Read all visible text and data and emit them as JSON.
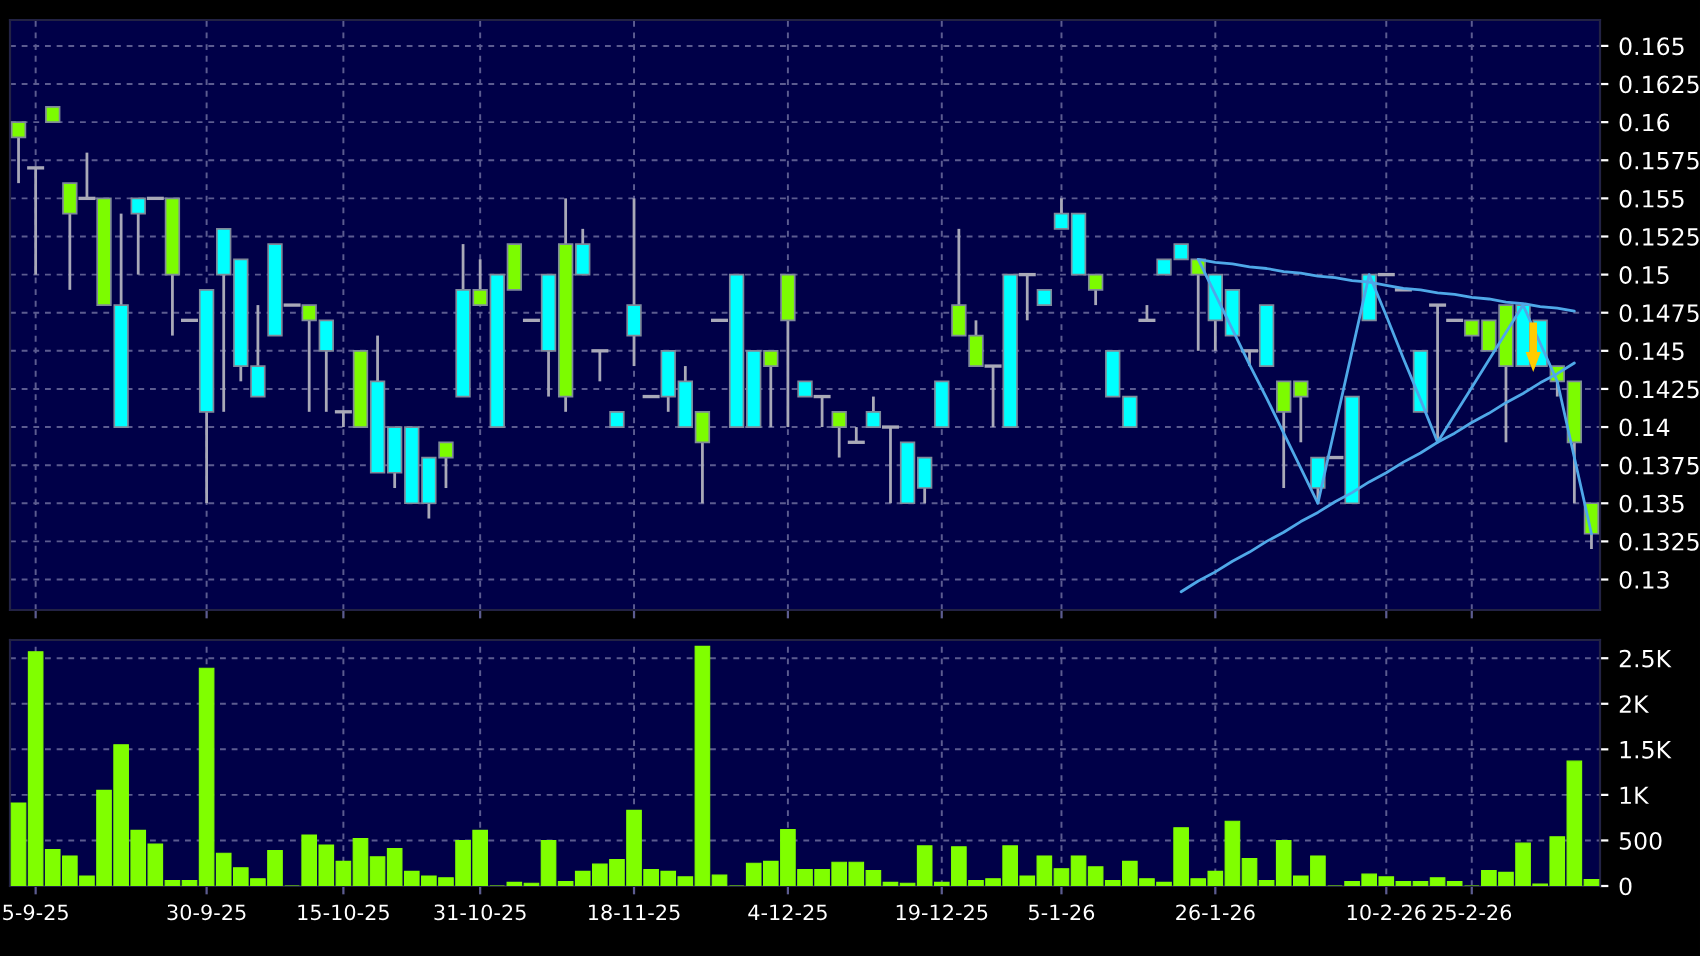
{
  "chart_data": [
    {
      "type": "candlestick",
      "categories": [
        null,
        null,
        null,
        null,
        null,
        null,
        null,
        null,
        null,
        null,
        null,
        null,
        null,
        null,
        null,
        null,
        null,
        null,
        null,
        null,
        null,
        null,
        null,
        null,
        null,
        null,
        null,
        null,
        null,
        null,
        null,
        null,
        null,
        null,
        null,
        null,
        null,
        null,
        null,
        null,
        null,
        null,
        null,
        null,
        null,
        null,
        null,
        null,
        null,
        null,
        null,
        null,
        null,
        null,
        null,
        null,
        null,
        null,
        null,
        null,
        null,
        null,
        null,
        null,
        null,
        null,
        null,
        null,
        null,
        null,
        null,
        null,
        null,
        null,
        null,
        null,
        null,
        null,
        null,
        null,
        null,
        null,
        null,
        null,
        null,
        null,
        null,
        null,
        null,
        null,
        null,
        null,
        null
      ],
      "ohlc": [
        [
          0.159,
          0.16,
          0.156,
          0.16
        ],
        [
          0.157,
          0.157,
          0.15,
          0.157
        ],
        [
          0.16,
          0.161,
          0.16,
          0.161
        ],
        [
          0.154,
          0.156,
          0.149,
          0.156
        ],
        [
          0.155,
          0.158,
          0.155,
          0.155
        ],
        [
          0.148,
          0.155,
          0.148,
          0.155
        ],
        [
          0.148,
          0.154,
          0.14,
          0.14
        ],
        [
          0.155,
          0.155,
          0.15,
          0.154
        ],
        [
          0.155,
          0.155,
          0.155,
          0.155
        ],
        [
          0.15,
          0.155,
          0.146,
          0.155
        ],
        [
          0.147,
          0.147,
          0.147,
          0.147
        ],
        [
          0.149,
          0.149,
          0.135,
          0.141
        ],
        [
          0.153,
          0.153,
          0.141,
          0.15
        ],
        [
          0.151,
          0.151,
          0.143,
          0.144
        ],
        [
          0.144,
          0.148,
          0.142,
          0.142
        ],
        [
          0.152,
          0.152,
          0.146,
          0.146
        ],
        [
          0.148,
          0.148,
          0.148,
          0.148
        ],
        [
          0.147,
          0.148,
          0.141,
          0.148
        ],
        [
          0.147,
          0.147,
          0.141,
          0.145
        ],
        [
          0.141,
          0.141,
          0.14,
          0.141
        ],
        [
          0.14,
          0.145,
          0.14,
          0.145
        ],
        [
          0.143,
          0.146,
          0.137,
          0.137
        ],
        [
          0.14,
          0.14,
          0.136,
          0.137
        ],
        [
          0.14,
          0.14,
          0.135,
          0.135
        ],
        [
          0.138,
          0.138,
          0.134,
          0.135
        ],
        [
          0.138,
          0.139,
          0.136,
          0.139
        ],
        [
          0.149,
          0.152,
          0.142,
          0.142
        ],
        [
          0.148,
          0.151,
          0.148,
          0.149
        ],
        [
          0.15,
          0.15,
          0.14,
          0.14
        ],
        [
          0.149,
          0.152,
          0.149,
          0.152
        ],
        [
          0.147,
          0.147,
          0.147,
          0.147
        ],
        [
          0.15,
          0.15,
          0.142,
          0.145
        ],
        [
          0.142,
          0.155,
          0.141,
          0.152
        ],
        [
          0.152,
          0.153,
          0.15,
          0.15
        ],
        [
          0.145,
          0.145,
          0.143,
          0.145
        ],
        [
          0.141,
          0.141,
          0.14,
          0.14
        ],
        [
          0.148,
          0.155,
          0.144,
          0.146
        ],
        [
          0.142,
          0.142,
          0.142,
          0.142
        ],
        [
          0.145,
          0.145,
          0.141,
          0.142
        ],
        [
          0.143,
          0.144,
          0.14,
          0.14
        ],
        [
          0.139,
          0.141,
          0.135,
          0.141
        ],
        [
          0.147,
          0.147,
          0.147,
          0.147
        ],
        [
          0.15,
          0.15,
          0.14,
          0.14
        ],
        [
          0.145,
          0.145,
          0.14,
          0.14
        ],
        [
          0.144,
          0.145,
          0.14,
          0.145
        ],
        [
          0.147,
          0.15,
          0.14,
          0.15
        ],
        [
          0.143,
          0.143,
          0.142,
          0.142
        ],
        [
          0.142,
          0.142,
          0.14,
          0.142
        ],
        [
          0.14,
          0.141,
          0.138,
          0.141
        ],
        [
          0.139,
          0.14,
          0.139,
          0.139
        ],
        [
          0.141,
          0.142,
          0.14,
          0.14
        ],
        [
          0.14,
          0.14,
          0.135,
          0.14
        ],
        [
          0.139,
          0.139,
          0.135,
          0.135
        ],
        [
          0.138,
          0.138,
          0.135,
          0.136
        ],
        [
          0.143,
          0.143,
          0.14,
          0.14
        ],
        [
          0.146,
          0.153,
          0.146,
          0.148
        ],
        [
          0.144,
          0.147,
          0.144,
          0.146
        ],
        [
          0.144,
          0.144,
          0.14,
          0.144
        ],
        [
          0.15,
          0.15,
          0.14,
          0.14
        ],
        [
          0.15,
          0.15,
          0.147,
          0.15
        ],
        [
          0.149,
          0.149,
          0.148,
          0.148
        ],
        [
          0.154,
          0.155,
          0.153,
          0.153
        ],
        [
          0.154,
          0.154,
          0.15,
          0.15
        ],
        [
          0.149,
          0.15,
          0.148,
          0.15
        ],
        [
          0.145,
          0.145,
          0.142,
          0.142
        ],
        [
          0.142,
          0.142,
          0.14,
          0.14
        ],
        [
          0.147,
          0.148,
          0.147,
          0.147
        ],
        [
          0.151,
          0.151,
          0.15,
          0.15
        ],
        [
          0.152,
          0.152,
          0.151,
          0.151
        ],
        [
          0.15,
          0.151,
          0.145,
          0.151
        ],
        [
          0.15,
          0.15,
          0.145,
          0.147
        ],
        [
          0.149,
          0.149,
          0.146,
          0.146
        ],
        [
          0.145,
          0.145,
          0.144,
          0.145
        ],
        [
          0.148,
          0.148,
          0.144,
          0.144
        ],
        [
          0.141,
          0.143,
          0.136,
          0.143
        ],
        [
          0.142,
          0.143,
          0.139,
          0.143
        ],
        [
          0.138,
          0.138,
          0.135,
          0.136
        ],
        [
          0.138,
          0.138,
          0.138,
          0.138
        ],
        [
          0.142,
          0.142,
          0.135,
          0.135
        ],
        [
          0.15,
          0.15,
          0.147,
          0.147
        ],
        [
          0.15,
          0.15,
          0.15,
          0.15
        ],
        [
          0.149,
          0.149,
          0.149,
          0.149
        ],
        [
          0.145,
          0.145,
          0.141,
          0.141
        ],
        [
          0.148,
          0.148,
          0.139,
          0.148
        ],
        [
          0.147,
          0.147,
          0.147,
          0.147
        ],
        [
          0.146,
          0.147,
          0.146,
          0.147
        ],
        [
          0.145,
          0.147,
          0.145,
          0.147
        ],
        [
          0.144,
          0.148,
          0.139,
          0.148
        ],
        [
          0.148,
          0.148,
          0.144,
          0.144
        ],
        [
          0.147,
          0.147,
          0.144,
          0.144
        ],
        [
          0.143,
          0.144,
          0.142,
          0.144
        ],
        [
          0.139,
          0.143,
          0.135,
          0.143
        ],
        [
          0.133,
          0.135,
          0.132,
          0.135
        ]
      ],
      "colors": [
        "#7cfc00",
        "#a9a9b8",
        "#7cfc00",
        "#7cfc00",
        "#a9a9b8",
        "#7cfc00",
        "#00ffff",
        "#00ffff",
        "#a9a9b8",
        "#7cfc00",
        "#a9a9b8",
        "#00ffff",
        "#00ffff",
        "#00ffff",
        "#00ffff",
        "#00ffff",
        "#a9a9b8",
        "#7cfc00",
        "#00ffff",
        "#a9a9b8",
        "#7cfc00",
        "#00ffff",
        "#00ffff",
        "#00ffff",
        "#00ffff",
        "#7cfc00",
        "#00ffff",
        "#7cfc00",
        "#00ffff",
        "#7cfc00",
        "#a9a9b8",
        "#00ffff",
        "#7cfc00",
        "#00ffff",
        "#a9a9b8",
        "#00ffff",
        "#00ffff",
        "#a9a9b8",
        "#00ffff",
        "#00ffff",
        "#7cfc00",
        "#a9a9b8",
        "#00ffff",
        "#00ffff",
        "#7cfc00",
        "#7cfc00",
        "#00ffff",
        "#a9a9b8",
        "#7cfc00",
        "#a9a9b8",
        "#00ffff",
        "#a9a9b8",
        "#00ffff",
        "#00ffff",
        "#00ffff",
        "#7cfc00",
        "#7cfc00",
        "#a9a9b8",
        "#00ffff",
        "#a9a9b8",
        "#00ffff",
        "#00ffff",
        "#00ffff",
        "#7cfc00",
        "#00ffff",
        "#00ffff",
        "#a9a9b8",
        "#00ffff",
        "#00ffff",
        "#7cfc00",
        "#00ffff",
        "#00ffff",
        "#a9a9b8",
        "#00ffff",
        "#7cfc00",
        "#7cfc00",
        "#00ffff",
        "#a9a9b8",
        "#00ffff",
        "#00ffff",
        "#a9a9b8",
        "#a9a9b8",
        "#00ffff",
        "#a9a9b8",
        "#a9a9b8",
        "#7cfc00",
        "#7cfc00",
        "#7cfc00",
        "#00ffff",
        "#00ffff",
        "#7cfc00",
        "#7cfc00",
        "#7cfc00"
      ],
      "series": [
        {
          "type": "line",
          "color": "#4fa8e8",
          "values": [
            null,
            null,
            null,
            null,
            null,
            null,
            null,
            null,
            null,
            null,
            null,
            null,
            null,
            null,
            null,
            null,
            null,
            null,
            null,
            null,
            null,
            null,
            null,
            null,
            null,
            null,
            null,
            null,
            null,
            null,
            null,
            null,
            null,
            null,
            null,
            null,
            null,
            null,
            null,
            null,
            null,
            null,
            null,
            null,
            null,
            null,
            null,
            null,
            null,
            null,
            null,
            null,
            null,
            null,
            null,
            null,
            null,
            null,
            null,
            null,
            null,
            null,
            null,
            null,
            null,
            null,
            null,
            null,
            null,
            0.151,
            0.1508,
            0.1507,
            0.1505,
            0.1504,
            0.1502,
            0.1501,
            0.1499,
            0.1498,
            0.1496,
            0.1495,
            0.1493,
            0.1491,
            0.149,
            0.1488,
            0.1487,
            0.1485,
            0.1484,
            0.1482,
            0.1481,
            0.1479,
            0.1478,
            0.1476,
            null
          ]
        },
        {
          "type": "line",
          "color": "#4fa8e8",
          "values": [
            null,
            null,
            null,
            null,
            null,
            null,
            null,
            null,
            null,
            null,
            null,
            null,
            null,
            null,
            null,
            null,
            null,
            null,
            null,
            null,
            null,
            null,
            null,
            null,
            null,
            null,
            null,
            null,
            null,
            null,
            null,
            null,
            null,
            null,
            null,
            null,
            null,
            null,
            null,
            null,
            null,
            null,
            null,
            null,
            null,
            null,
            null,
            null,
            null,
            null,
            null,
            null,
            null,
            null,
            null,
            null,
            null,
            null,
            null,
            null,
            null,
            null,
            null,
            null,
            null,
            null,
            null,
            null,
            0.1292,
            0.1299,
            0.1305,
            0.1312,
            0.1318,
            0.1325,
            0.1331,
            0.1338,
            0.1344,
            0.1351,
            0.1357,
            0.1364,
            0.137,
            0.1377,
            0.1383,
            0.139,
            0.1396,
            0.1403,
            0.1409,
            0.1416,
            0.1422,
            0.1429,
            0.1435,
            0.1442,
            null
          ]
        },
        {
          "type": "line",
          "color": "#4fa8e8",
          "values": [
            null,
            null,
            null,
            null,
            null,
            null,
            null,
            null,
            null,
            null,
            null,
            null,
            null,
            null,
            null,
            null,
            null,
            null,
            null,
            null,
            null,
            null,
            null,
            null,
            null,
            null,
            null,
            null,
            null,
            null,
            null,
            null,
            null,
            null,
            null,
            null,
            null,
            null,
            null,
            null,
            null,
            null,
            null,
            null,
            null,
            null,
            null,
            null,
            null,
            null,
            null,
            null,
            null,
            null,
            null,
            null,
            null,
            null,
            null,
            null,
            null,
            null,
            null,
            null,
            null,
            null,
            null,
            null,
            null,
            0.151,
            0.1487,
            0.1464,
            0.1441,
            0.1419,
            0.1396,
            0.1373,
            0.135,
            0.14,
            0.145,
            0.15,
            0.1473,
            0.1445,
            0.1418,
            0.139,
            0.1408,
            0.1426,
            0.1444,
            0.1462,
            0.148,
            0.1455,
            0.143,
            0.138,
            0.133
          ]
        }
      ],
      "ylim": [
        0.128,
        0.1667
      ],
      "yticks": [
        0.13,
        0.1325,
        0.135,
        0.1375,
        0.14,
        0.1425,
        0.145,
        0.1475,
        0.15,
        0.1525,
        0.155,
        0.1575,
        0.16,
        0.1625,
        0.165
      ],
      "grid": true
    },
    {
      "type": "bar",
      "categories": [
        null,
        "5-9-25",
        null,
        null,
        null,
        null,
        null,
        null,
        null,
        null,
        null,
        "30-9-25",
        null,
        null,
        null,
        null,
        null,
        null,
        null,
        "15-10-25",
        null,
        null,
        null,
        null,
        null,
        null,
        null,
        "31-10-25",
        null,
        null,
        null,
        null,
        null,
        null,
        null,
        null,
        "18-11-25",
        null,
        null,
        null,
        null,
        null,
        null,
        null,
        null,
        "4-12-25",
        null,
        null,
        null,
        null,
        null,
        null,
        null,
        null,
        "19-12-25",
        null,
        null,
        null,
        null,
        null,
        null,
        "5-1-26",
        null,
        null,
        null,
        null,
        null,
        null,
        null,
        null,
        "26-1-26",
        null,
        null,
        null,
        null,
        null,
        null,
        null,
        null,
        null,
        "10-2-26",
        null,
        null,
        null,
        null,
        "25-2-26",
        null,
        null,
        null,
        null,
        null,
        null,
        null
      ],
      "values": [
        910,
        2570,
        400,
        330,
        110,
        1050,
        1550,
        610,
        460,
        60,
        60,
        2390,
        360,
        200,
        80,
        390,
        0,
        560,
        450,
        270,
        520,
        320,
        410,
        160,
        110,
        90,
        500,
        610,
        0,
        40,
        30,
        500,
        50,
        160,
        240,
        290,
        830,
        180,
        160,
        100,
        2630,
        120,
        0,
        250,
        270,
        620,
        180,
        180,
        260,
        260,
        170,
        40,
        30,
        440,
        40,
        430,
        60,
        80,
        440,
        110,
        330,
        190,
        330,
        210,
        60,
        270,
        80,
        40,
        640,
        80,
        160,
        710,
        300,
        60,
        500,
        110,
        330,
        0,
        50,
        130,
        100,
        50,
        50,
        90,
        50,
        0,
        170,
        150,
        470,
        20,
        540,
        1370,
        70
      ],
      "color": "#80ff00",
      "ylim": [
        0,
        2700
      ],
      "yticks": [
        0,
        500,
        {
          "value": 1000,
          "label": "1K"
        },
        {
          "value": 1500,
          "label": "1.5K"
        },
        {
          "value": 2000,
          "label": "2K"
        },
        {
          "value": 2500,
          "label": "2.5K"
        }
      ],
      "grid": true
    }
  ]
}
